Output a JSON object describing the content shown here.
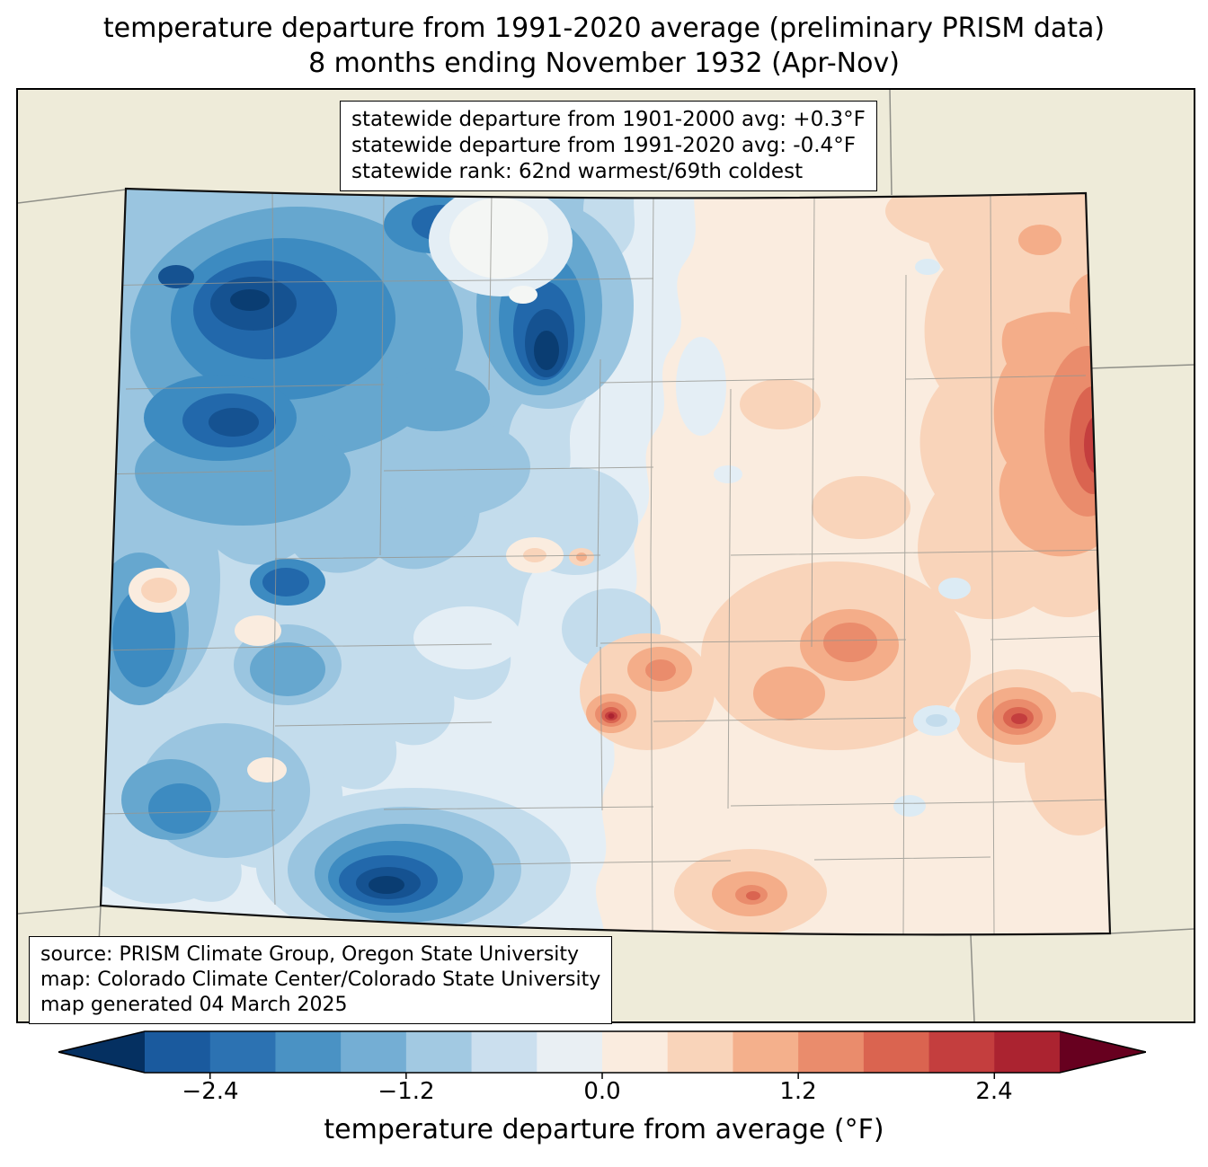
{
  "title": {
    "line1": "temperature departure from 1991-2020 average (preliminary PRISM data)",
    "line2": "8 months ending November 1932 (Apr-Nov)"
  },
  "stats_box": {
    "line1": "statewide departure from 1901-2000 avg: +0.3°F",
    "line2": "statewide departure from 1991-2020 avg: -0.4°F",
    "line3": "statewide rank: 62nd warmest/69th coldest"
  },
  "source_box": {
    "line1": "source: PRISM Climate Group, Oregon State University",
    "line2": "map: Colorado Climate Center/Colorado State University",
    "line3": "map generated 04 March 2025"
  },
  "colorbar": {
    "label": "temperature departure from average (°F)",
    "ticks": [
      "−2.4",
      "−1.2",
      "0.0",
      "1.2",
      "2.4"
    ],
    "tick_values": [
      -2.4,
      -1.2,
      0.0,
      1.2,
      2.4
    ],
    "segment_colors": [
      "#1a5a9e",
      "#2c72b2",
      "#4a92c4",
      "#74aed4",
      "#a2c9e2",
      "#cbdfee",
      "#e9eff3",
      "#faecdf",
      "#f9d4ba",
      "#f4b08c",
      "#ea8c6c",
      "#da6450",
      "#c43e3e",
      "#ab2330"
    ],
    "arrow_left_color": "#053061",
    "arrow_right_color": "#67001f"
  },
  "map_colors": {
    "background_land": "#eeebd9",
    "state_border": "#8f8f88",
    "county_border": "#969690",
    "colorado_outline": "#111111"
  }
}
